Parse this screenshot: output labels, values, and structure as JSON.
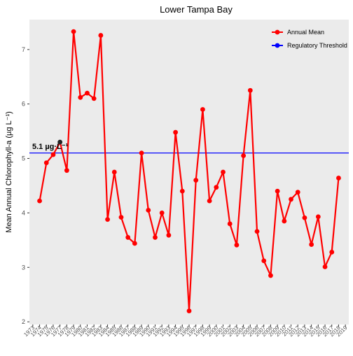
{
  "chart_data": {
    "type": "line",
    "title": "Lower Tampa Bay",
    "xlabel": "",
    "ylabel": "Mean Annual Chlorophyll-a (µg L⁻¹)",
    "ylim": [
      1.95,
      7.55
    ],
    "yticks": [
      2,
      3,
      4,
      5,
      6,
      7
    ],
    "grid": false,
    "legend_position": "top-right",
    "categories": [
      "1973",
      "1974",
      "1975",
      "1976",
      "1977",
      "1978",
      "1979",
      "1980",
      "1981",
      "1982",
      "1983",
      "1984",
      "1985",
      "1986",
      "1987",
      "1988",
      "1989",
      "1990",
      "1991",
      "1992",
      "1993",
      "1994",
      "1995",
      "1996",
      "1997",
      "1998",
      "1999",
      "2000",
      "2001",
      "2002",
      "2003",
      "2004",
      "2005",
      "2006",
      "2007",
      "2008",
      "2009",
      "2010",
      "2011",
      "2012",
      "2013",
      "2014",
      "2015",
      "2016",
      "2017",
      "2018",
      "2019"
    ],
    "series": [
      {
        "name": "Annual Mean",
        "color": "#ff0000",
        "values": [
          null,
          4.22,
          4.92,
          5.07,
          5.3,
          4.78,
          7.33,
          6.12,
          6.2,
          6.1,
          7.26,
          3.88,
          4.75,
          3.92,
          3.55,
          3.44,
          5.1,
          4.05,
          3.55,
          4.0,
          3.59,
          5.48,
          4.4,
          2.2,
          4.6,
          5.9,
          4.22,
          4.47,
          4.75,
          3.8,
          3.41,
          5.05,
          6.25,
          3.66,
          3.12,
          2.85,
          4.4,
          3.85,
          4.25,
          4.38,
          3.91,
          3.42,
          3.93,
          3.01,
          3.28,
          4.64,
          null
        ]
      },
      {
        "name": "Regulatory Threshold",
        "color": "#0000ff",
        "value": 5.1
      }
    ],
    "annotation": {
      "text": "5.1 µg·L⁻¹",
      "year": "1977",
      "value": 5.3
    }
  }
}
